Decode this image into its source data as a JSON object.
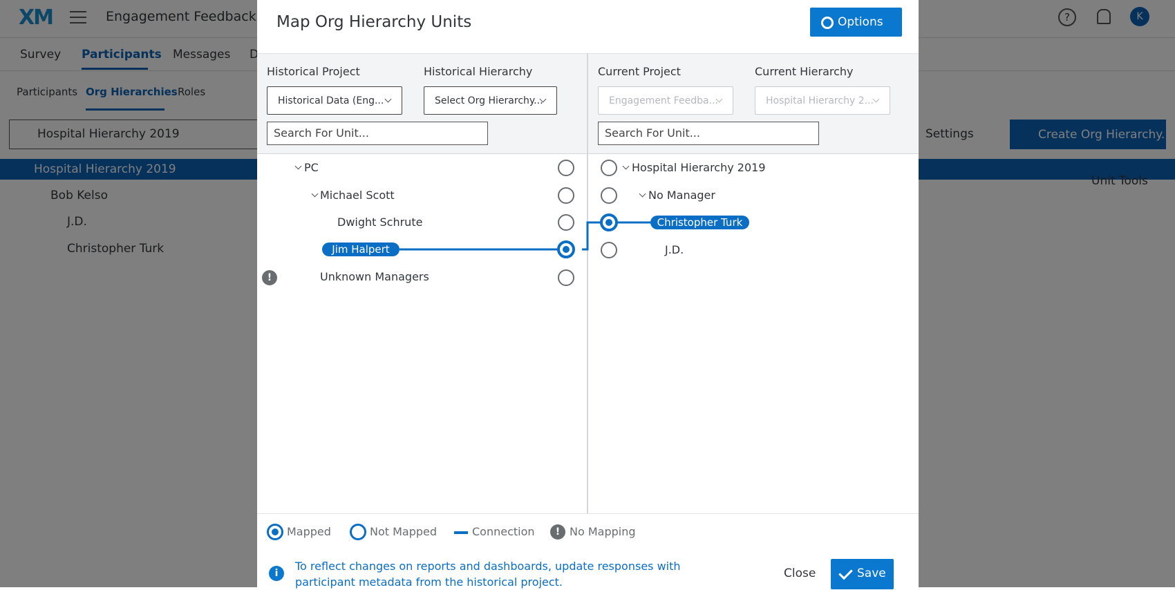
{
  "header": {
    "logo": "XM",
    "title": "Engagement Feedback Te",
    "avatar": "K"
  },
  "tabs": [
    "Survey",
    "Participants",
    "Messages",
    "D"
  ],
  "subtabs": [
    "Participants",
    "Org Hierarchies",
    "Roles"
  ],
  "page": {
    "hierarchy_select": "Hospital Hierarchy 2019",
    "settings": "Settings",
    "create_button": "Create Org Hierarchy...",
    "unit_tools": "Unit Tools",
    "tree": [
      "Hospital Hierarchy 2019",
      "Bob Kelso",
      "J.D.",
      "Christopher Turk"
    ]
  },
  "modal": {
    "title": "Map Org Hierarchy Units",
    "options": "Options",
    "left": {
      "project_label": "Historical Project",
      "project_value": "Historical Data (Eng...",
      "hierarchy_label": "Historical Hierarchy",
      "hierarchy_value": "Select Org Hierarchy...",
      "search": "Search For Unit...",
      "nodes": [
        "PC",
        "Michael Scott",
        "Dwight Schrute",
        "Jim Halpert",
        "Unknown Managers"
      ]
    },
    "right": {
      "project_label": "Current Project",
      "project_value": "Engagement Feedba...",
      "hierarchy_label": "Current Hierarchy",
      "hierarchy_value": "Hospital Hierarchy 2...",
      "search": "Search For Unit...",
      "nodes": [
        "Hospital Hierarchy 2019",
        "No Manager",
        "Christopher Turk",
        "J.D."
      ]
    },
    "legend": [
      "Mapped",
      "Not Mapped",
      "Connection",
      "No Mapping"
    ],
    "note": "To reflect changes on reports and dashboards, update responses with participant metadata from the historical project.",
    "close": "Close",
    "save": "Save"
  }
}
